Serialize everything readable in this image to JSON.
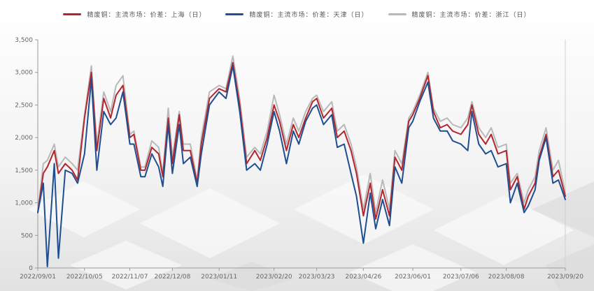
{
  "colors": {
    "shanghai": "#b3262e",
    "tianjin": "#1f4e91",
    "zhejiang": "#b9b9b9",
    "axis": "#9a9a9a",
    "tick_text": "#666666"
  },
  "chart_data": {
    "type": "line",
    "title": "",
    "xlabel": "",
    "ylabel": "",
    "ylim": [
      0,
      3500
    ],
    "yticks": [
      "0",
      "500",
      "1,000",
      "1,500",
      "2,000",
      "2,500",
      "3,000",
      "3,500"
    ],
    "ytick_values": [
      0,
      500,
      1000,
      1500,
      2000,
      2500,
      3000,
      3500
    ],
    "xticks": [
      "2022/09/01",
      "2022/10/05",
      "2022/11/07",
      "2022/12/08",
      "2023/01/11",
      "2023/02/20",
      "2023/03/23",
      "2023/04/26",
      "2023/06/01",
      "2023/07/06",
      "2023/08/08",
      "2023/09/20"
    ],
    "grid": false,
    "legend_position": "top-center",
    "x": [
      "2022/09/01",
      "2022/09/05",
      "2022/09/08",
      "2022/09/13",
      "2022/09/16",
      "2022/09/21",
      "2022/09/26",
      "2022/09/30",
      "2022/10/05",
      "2022/10/10",
      "2022/10/14",
      "2022/10/19",
      "2022/10/24",
      "2022/10/28",
      "2022/11/02",
      "2022/11/07",
      "2022/11/10",
      "2022/11/15",
      "2022/11/18",
      "2022/11/23",
      "2022/11/28",
      "2022/12/01",
      "2022/12/05",
      "2022/12/08",
      "2022/12/13",
      "2022/12/16",
      "2022/12/21",
      "2022/12/26",
      "2022/12/29",
      "2023/01/04",
      "2023/01/11",
      "2023/01/16",
      "2023/01/21",
      "2023/01/26",
      "2023/01/31",
      "2023/02/06",
      "2023/02/10",
      "2023/02/15",
      "2023/02/20",
      "2023/02/24",
      "2023/03/01",
      "2023/03/06",
      "2023/03/10",
      "2023/03/15",
      "2023/03/20",
      "2023/03/23",
      "2023/03/28",
      "2023/04/03",
      "2023/04/07",
      "2023/04/12",
      "2023/04/17",
      "2023/04/21",
      "2023/04/26",
      "2023/05/01",
      "2023/05/05",
      "2023/05/10",
      "2023/05/15",
      "2023/05/19",
      "2023/05/24",
      "2023/05/29",
      "2023/06/01",
      "2023/06/06",
      "2023/06/12",
      "2023/06/16",
      "2023/06/21",
      "2023/06/26",
      "2023/06/30",
      "2023/07/06",
      "2023/07/11",
      "2023/07/14",
      "2023/07/19",
      "2023/07/24",
      "2023/07/28",
      "2023/08/02",
      "2023/08/08",
      "2023/08/11",
      "2023/08/16",
      "2023/08/21",
      "2023/08/24",
      "2023/08/29",
      "2023/09/01",
      "2023/09/06",
      "2023/09/11",
      "2023/09/15",
      "2023/09/20"
    ],
    "series": [
      {
        "name": "精废铜：主流市场：价差：上海（日）",
        "color": "#b3262e",
        "values": [
          850,
          1450,
          1550,
          1800,
          1450,
          1600,
          1500,
          1350,
          2300,
          3000,
          1800,
          2600,
          2300,
          2650,
          2800,
          2000,
          2050,
          1500,
          1500,
          1850,
          1750,
          1400,
          2300,
          1600,
          2350,
          1800,
          1800,
          1300,
          1900,
          2600,
          2750,
          2700,
          3150,
          2500,
          1600,
          1800,
          1650,
          2000,
          2500,
          2250,
          1800,
          2200,
          2000,
          2300,
          2550,
          2600,
          2300,
          2450,
          2000,
          2100,
          1800,
          1450,
          800,
          1300,
          750,
          1200,
          800,
          1700,
          1500,
          2250,
          2350,
          2600,
          2950,
          2400,
          2150,
          2200,
          2100,
          2050,
          2200,
          2500,
          2050,
          1900,
          2050,
          1750,
          1800,
          1200,
          1400,
          900,
          1100,
          1300,
          1700,
          2050,
          1400,
          1500,
          1100
        ]
      },
      {
        "name": "精废铜：主流市场：价差：天津（日）",
        "color": "#1f4e91",
        "values": [
          850,
          1300,
          20,
          1600,
          150,
          1500,
          1450,
          1300,
          1750,
          2900,
          1500,
          2400,
          2200,
          2300,
          2700,
          1900,
          1900,
          1400,
          1400,
          1750,
          1550,
          1250,
          2200,
          1450,
          2200,
          1600,
          1700,
          1250,
          1750,
          2500,
          2700,
          2600,
          3100,
          2400,
          1500,
          1600,
          1500,
          1900,
          2400,
          2100,
          1600,
          2100,
          1900,
          2250,
          2450,
          2500,
          2200,
          2350,
          1850,
          1900,
          1450,
          1100,
          380,
          1150,
          600,
          1050,
          650,
          1550,
          1300,
          2150,
          2250,
          2550,
          2850,
          2300,
          2100,
          2100,
          1950,
          1900,
          1800,
          2400,
          1900,
          1750,
          1800,
          1550,
          1600,
          1000,
          1300,
          850,
          950,
          1200,
          1650,
          2000,
          1300,
          1350,
          1050
        ]
      },
      {
        "name": "精废铜：主流市场：价差：浙江（日）",
        "color": "#b9b9b9",
        "values": [
          850,
          1600,
          1650,
          1900,
          1550,
          1700,
          1600,
          1500,
          2350,
          3100,
          1900,
          2700,
          2400,
          2800,
          2950,
          2050,
          2100,
          1550,
          1550,
          1950,
          1850,
          1450,
          2450,
          1700,
          2400,
          1900,
          1900,
          1350,
          2000,
          2700,
          2800,
          2750,
          3250,
          2600,
          1700,
          1850,
          1750,
          2100,
          2650,
          2350,
          1900,
          2300,
          2100,
          2400,
          2600,
          2650,
          2400,
          2550,
          2100,
          2200,
          1900,
          1550,
          900,
          1450,
          850,
          1350,
          900,
          1800,
          1600,
          2300,
          2400,
          2650,
          3000,
          2450,
          2250,
          2300,
          2200,
          2150,
          2300,
          2550,
          2150,
          2000,
          2150,
          1850,
          1900,
          1300,
          1450,
          1000,
          1200,
          1400,
          1800,
          2150,
          1500,
          1650,
          1150
        ]
      }
    ]
  }
}
